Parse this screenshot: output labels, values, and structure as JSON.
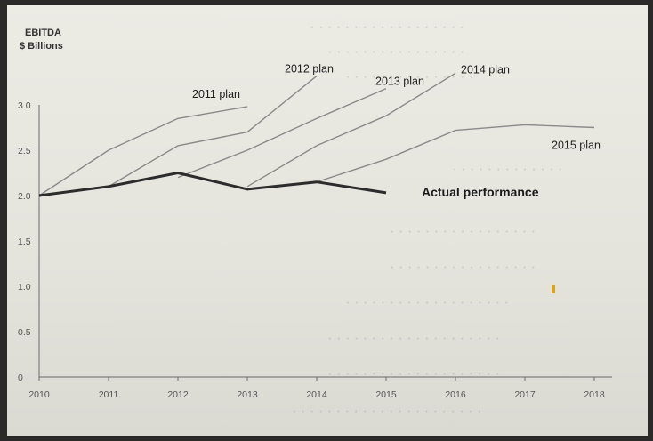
{
  "chart_data": {
    "type": "line",
    "ylabel_line1": "EBITDA",
    "ylabel_line2": "$ Billions",
    "ylim": [
      0,
      3.0
    ],
    "xlim": [
      2010,
      2018
    ],
    "y_ticks": [
      "0",
      "0.5",
      "1.0",
      "1.5",
      "2.0",
      "2.5",
      "3.0"
    ],
    "x_ticks": [
      "2010",
      "2011",
      "2012",
      "2013",
      "2014",
      "2015",
      "2016",
      "2017",
      "2018"
    ],
    "grid": false,
    "series": [
      {
        "name": "2011 plan",
        "x": [
          2010,
          2011,
          2012,
          2013
        ],
        "y": [
          2.0,
          2.5,
          2.85,
          2.98
        ]
      },
      {
        "name": "2012 plan",
        "x": [
          2011,
          2012,
          2013,
          2014
        ],
        "y": [
          2.1,
          2.55,
          2.7,
          3.32
        ]
      },
      {
        "name": "2013 plan",
        "x": [
          2012,
          2013,
          2014,
          2015
        ],
        "y": [
          2.2,
          2.5,
          2.85,
          3.18
        ]
      },
      {
        "name": "2014 plan",
        "x": [
          2013,
          2014,
          2015,
          2016
        ],
        "y": [
          2.1,
          2.55,
          2.88,
          3.35
        ]
      },
      {
        "name": "2015 plan",
        "x": [
          2014,
          2015,
          2016,
          2017,
          2018
        ],
        "y": [
          2.15,
          2.4,
          2.72,
          2.78,
          2.75
        ]
      },
      {
        "name": "Actual performance",
        "x": [
          2010,
          2011,
          2012,
          2013,
          2014,
          2015
        ],
        "y": [
          2.0,
          2.1,
          2.25,
          2.07,
          2.15,
          2.03
        ]
      }
    ]
  }
}
